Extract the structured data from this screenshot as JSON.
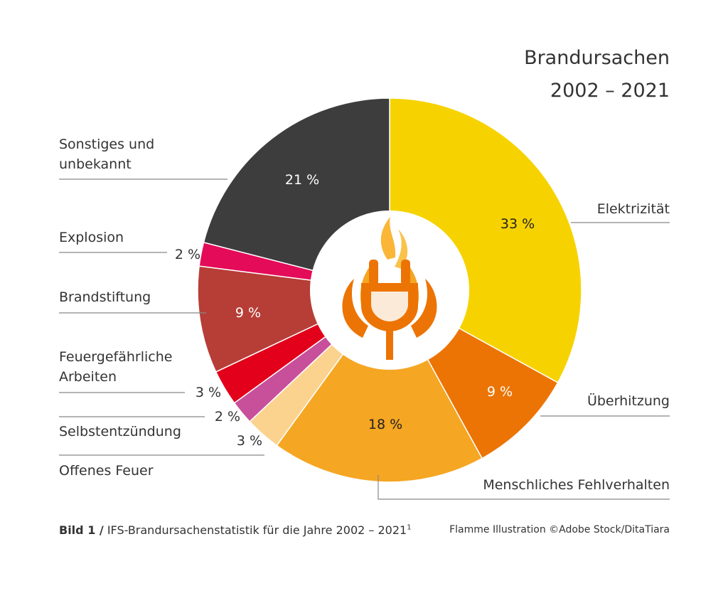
{
  "chart_data": {
    "type": "pie",
    "title_line1": "Brandursachen",
    "title_line2": "2002 – 2021",
    "slices": [
      {
        "name": "Elektrizität",
        "value": 33,
        "label": "33 %",
        "color": "#f6d300",
        "text_color": "#222222"
      },
      {
        "name": "Überhitzung",
        "value": 9,
        "label": "9 %",
        "color": "#ec7404",
        "text_color": "#ffffff"
      },
      {
        "name": "Menschliches Fehlverhalten",
        "value": 18,
        "label": "18 %",
        "color": "#f5a623",
        "text_color": "#222222"
      },
      {
        "name": "Offenes Feuer",
        "value": 3,
        "label": "3 %",
        "color": "#fbd38f",
        "text_color": "#333333"
      },
      {
        "name": "Selbstentzündung",
        "value": 2,
        "label": "2 %",
        "color": "#c8509a",
        "text_color": "#333333"
      },
      {
        "name": "Feuergefährliche Arbeiten",
        "value": 3,
        "label": "3 %",
        "color": "#e2001a",
        "text_color": "#333333"
      },
      {
        "name": "Brandstiftung",
        "value": 9,
        "label": "9 %",
        "color": "#b63e37",
        "text_color": "#ffffff"
      },
      {
        "name": "Explosion",
        "value": 2,
        "label": "2 %",
        "color": "#e40b58",
        "text_color": "#333333"
      },
      {
        "name": "Sonstiges und unbekannt",
        "value": 21,
        "label": "21 %",
        "color": "#3d3d3d",
        "text_color": "#ffffff"
      }
    ]
  },
  "caption": {
    "bold": "Bild 1 /",
    "text": " IFS-Brandursachenstatistik für die Jahre 2002 – 2021",
    "sup": "1"
  },
  "credit": "Flamme Illustration ©Adobe Stock/DitaTiara",
  "icon": "flaming-plug-icon"
}
